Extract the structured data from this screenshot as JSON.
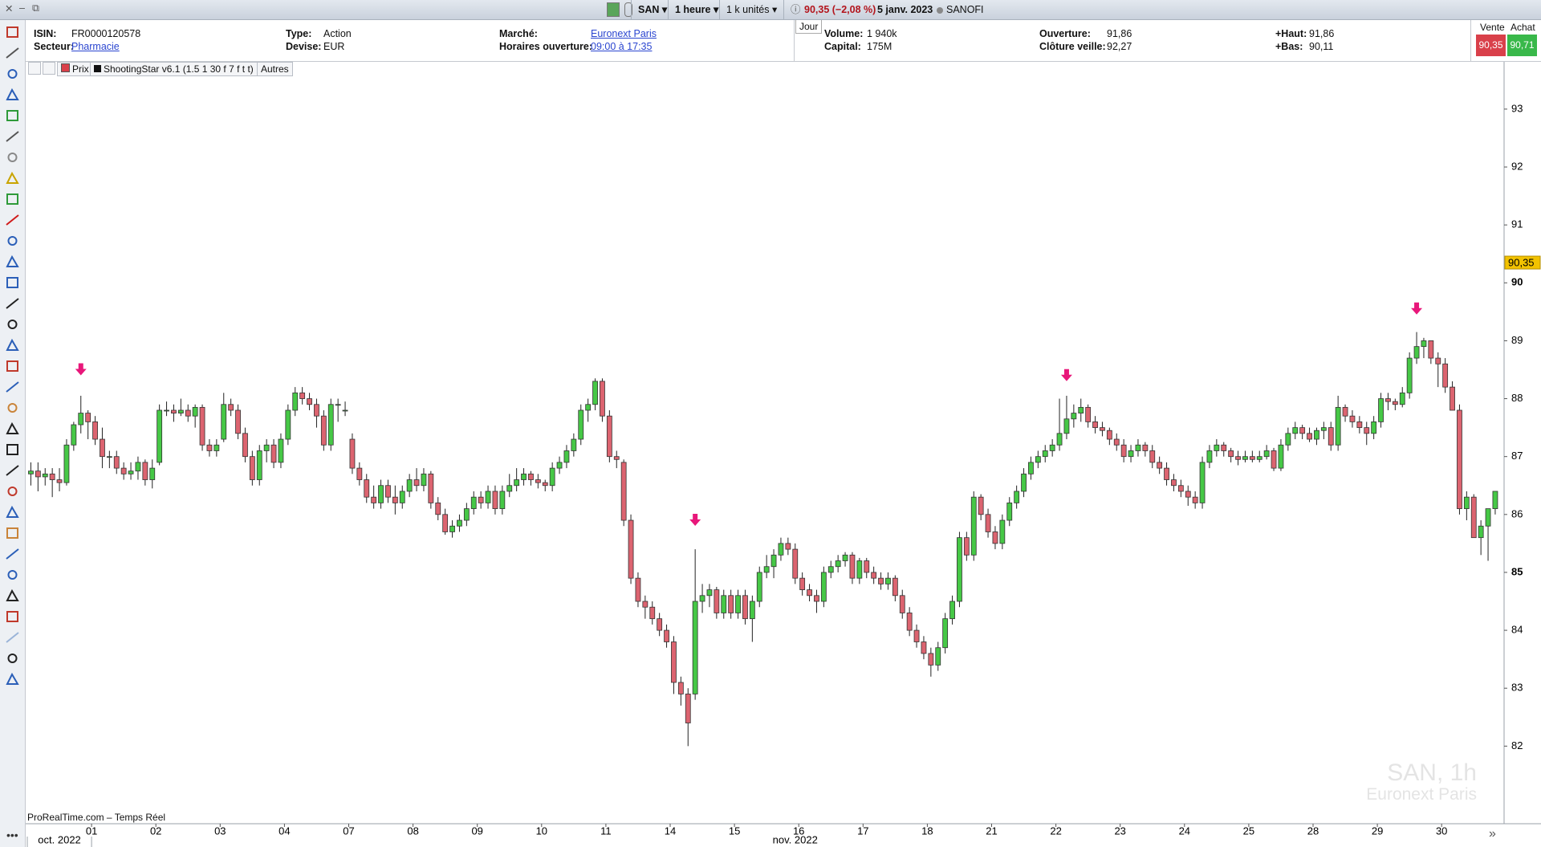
{
  "window": {
    "symbol": "SAN",
    "timeframe": "1 heure",
    "units": "1 k unités",
    "quote": "90,35 (−2,08 %)",
    "date": "5 janv. 2023",
    "name": "SANOFI"
  },
  "info": {
    "isin_label": "ISIN:",
    "isin": "FR0000120578",
    "sector_label": "Secteur:",
    "sector": "Pharmacie",
    "type_label": "Type:",
    "type": "Action",
    "currency_label": "Devise:",
    "currency": "EUR",
    "market_label": "Marché:",
    "market": "Euronext Paris",
    "hours_label": "Horaires ouverture:",
    "hours": "09:00 à 17:35",
    "tab": "Jour",
    "volume_label": "Volume:",
    "volume": "1 940k",
    "capital_label": "Capital:",
    "capital": "175M",
    "open_label": "Ouverture:",
    "open": "91,86",
    "prev_label": "Clôture veille:",
    "prev": "92,27",
    "high_label": "+Haut:",
    "high": "91,86",
    "low_label": "+Bas:",
    "low": "90,11"
  },
  "trade": {
    "sell_label": "Vente",
    "sell": "90,35",
    "buy_label": "Achat",
    "buy": "90,71"
  },
  "indicators": [
    "Prix",
    "ShootingStar v6.1 (1.5 1 30 f 7 f t t)",
    "Autres"
  ],
  "footer": {
    "source": "ProRealTime.com – Temps Réel",
    "watermark": "SAN, 1h",
    "watermark_sub": "Euronext Paris"
  },
  "chart_data": {
    "type": "candlestick",
    "up_color": "#46c846",
    "down_color": "#dc6470",
    "signal_color": "#e8177a",
    "ylim": [
      80.66,
      93.56
    ],
    "yticks": [
      82,
      83,
      84,
      85,
      86,
      87,
      88,
      89,
      90,
      91,
      92,
      93
    ],
    "last_price": {
      "value": 90.35,
      "label": "90,35"
    },
    "x_groups": [
      {
        "label": "oct. 2022",
        "start": 0
      },
      {
        "label": "nov. 2022",
        "start": 9
      }
    ],
    "categories": [
      null,
      null,
      null,
      null,
      null,
      null,
      null,
      null,
      null,
      "01",
      null,
      null,
      null,
      null,
      null,
      null,
      null,
      null,
      "02",
      null,
      null,
      null,
      null,
      null,
      null,
      null,
      null,
      "03",
      null,
      null,
      null,
      null,
      null,
      null,
      null,
      null,
      "04",
      null,
      null,
      null,
      null,
      null,
      null,
      null,
      null,
      "07",
      null,
      null,
      null,
      null,
      null,
      null,
      null,
      null,
      "08",
      null,
      null,
      null,
      null,
      null,
      null,
      null,
      null,
      "09",
      null,
      null,
      null,
      null,
      null,
      null,
      null,
      null,
      "10",
      null,
      null,
      null,
      null,
      null,
      null,
      null,
      null,
      "11",
      null,
      null,
      null,
      null,
      null,
      null,
      null,
      null,
      "14",
      null,
      null,
      null,
      null,
      null,
      null,
      null,
      null,
      "15",
      null,
      null,
      null,
      null,
      null,
      null,
      null,
      null,
      "16",
      null,
      null,
      null,
      null,
      null,
      null,
      null,
      null,
      "17",
      null,
      null,
      null,
      null,
      null,
      null,
      null,
      null,
      "18",
      null,
      null,
      null,
      null,
      null,
      null,
      null,
      null,
      "21",
      null,
      null,
      null,
      null,
      null,
      null,
      null,
      null,
      "22",
      null,
      null,
      null,
      null,
      null,
      null,
      null,
      null,
      "23",
      null,
      null,
      null,
      null,
      null,
      null,
      null,
      null,
      "24",
      null,
      null,
      null,
      null,
      null,
      null,
      null,
      null,
      "25",
      null,
      null,
      null,
      null,
      null,
      null,
      null,
      null,
      "28",
      null,
      null,
      null,
      null,
      null,
      null,
      null,
      null,
      "29",
      null,
      null,
      null,
      null,
      null,
      null,
      null,
      null,
      "30",
      null,
      null,
      null,
      null,
      null,
      null,
      null
    ],
    "candles": [
      [
        86.7,
        86.9,
        86.5,
        86.75
      ],
      [
        86.75,
        86.9,
        86.4,
        86.65
      ],
      [
        86.65,
        86.8,
        86.5,
        86.7
      ],
      [
        86.7,
        86.8,
        86.3,
        86.6
      ],
      [
        86.6,
        86.8,
        86.4,
        86.55
      ],
      [
        86.55,
        87.3,
        86.5,
        87.2
      ],
      [
        87.2,
        87.6,
        87.1,
        87.55
      ],
      [
        87.55,
        88.05,
        87.4,
        87.75
      ],
      [
        87.75,
        87.8,
        87.3,
        87.6
      ],
      [
        87.6,
        87.7,
        87.2,
        87.3
      ],
      [
        87.3,
        87.5,
        86.8,
        87.0
      ],
      [
        87.0,
        87.1,
        86.8,
        87.0
      ],
      [
        87.0,
        87.1,
        86.7,
        86.8
      ],
      [
        86.8,
        86.9,
        86.6,
        86.7
      ],
      [
        86.7,
        86.9,
        86.6,
        86.75
      ],
      [
        86.75,
        87.0,
        86.6,
        86.9
      ],
      [
        86.9,
        86.95,
        86.5,
        86.6
      ],
      [
        86.6,
        86.95,
        86.45,
        86.8
      ],
      [
        86.9,
        87.9,
        86.85,
        87.8
      ],
      [
        87.8,
        87.95,
        87.7,
        87.8
      ],
      [
        87.8,
        87.9,
        87.6,
        87.75
      ],
      [
        87.75,
        88.0,
        87.7,
        87.8
      ],
      [
        87.8,
        87.9,
        87.6,
        87.7
      ],
      [
        87.7,
        87.9,
        87.5,
        87.85
      ],
      [
        87.85,
        87.9,
        87.1,
        87.2
      ],
      [
        87.2,
        87.3,
        87.0,
        87.1
      ],
      [
        87.1,
        87.3,
        87.0,
        87.2
      ],
      [
        87.3,
        88.1,
        87.25,
        87.9
      ],
      [
        87.9,
        88.0,
        87.7,
        87.8
      ],
      [
        87.8,
        87.9,
        87.3,
        87.4
      ],
      [
        87.4,
        87.5,
        86.9,
        87.0
      ],
      [
        87.0,
        87.1,
        86.5,
        86.6
      ],
      [
        86.6,
        87.2,
        86.5,
        87.1
      ],
      [
        87.1,
        87.3,
        86.9,
        87.2
      ],
      [
        87.2,
        87.3,
        86.8,
        86.9
      ],
      [
        86.9,
        87.4,
        86.8,
        87.3
      ],
      [
        87.3,
        87.9,
        87.2,
        87.8
      ],
      [
        87.8,
        88.2,
        87.7,
        88.1
      ],
      [
        88.1,
        88.2,
        87.9,
        88.0
      ],
      [
        88.0,
        88.1,
        87.8,
        87.9
      ],
      [
        87.9,
        88.0,
        87.5,
        87.7
      ],
      [
        87.7,
        87.8,
        87.1,
        87.2
      ],
      [
        87.2,
        88.0,
        87.1,
        87.9
      ],
      [
        87.9,
        88.0,
        87.6,
        87.9
      ],
      [
        87.8,
        87.95,
        87.7,
        87.8
      ],
      [
        87.3,
        87.4,
        86.7,
        86.8
      ],
      [
        86.8,
        86.9,
        86.5,
        86.6
      ],
      [
        86.6,
        86.7,
        86.2,
        86.3
      ],
      [
        86.3,
        86.5,
        86.1,
        86.2
      ],
      [
        86.2,
        86.6,
        86.1,
        86.5
      ],
      [
        86.5,
        86.6,
        86.2,
        86.3
      ],
      [
        86.3,
        86.5,
        86.0,
        86.2
      ],
      [
        86.2,
        86.5,
        86.1,
        86.4
      ],
      [
        86.4,
        86.7,
        86.3,
        86.6
      ],
      [
        86.6,
        86.8,
        86.4,
        86.5
      ],
      [
        86.5,
        86.8,
        86.4,
        86.7
      ],
      [
        86.7,
        86.75,
        86.1,
        86.2
      ],
      [
        86.2,
        86.3,
        85.9,
        86.0
      ],
      [
        86.0,
        86.1,
        85.65,
        85.7
      ],
      [
        85.7,
        85.9,
        85.6,
        85.8
      ],
      [
        85.8,
        86.0,
        85.7,
        85.9
      ],
      [
        85.9,
        86.2,
        85.8,
        86.1
      ],
      [
        86.1,
        86.4,
        86.0,
        86.3
      ],
      [
        86.3,
        86.4,
        86.1,
        86.2
      ],
      [
        86.2,
        86.5,
        86.1,
        86.4
      ],
      [
        86.4,
        86.5,
        86.0,
        86.1
      ],
      [
        86.1,
        86.5,
        86.0,
        86.4
      ],
      [
        86.4,
        86.7,
        86.3,
        86.5
      ],
      [
        86.5,
        86.8,
        86.4,
        86.6
      ],
      [
        86.6,
        86.8,
        86.5,
        86.7
      ],
      [
        86.7,
        86.75,
        86.5,
        86.6
      ],
      [
        86.6,
        86.7,
        86.45,
        86.55
      ],
      [
        86.55,
        86.6,
        86.4,
        86.5
      ],
      [
        86.5,
        86.9,
        86.4,
        86.8
      ],
      [
        86.8,
        87.0,
        86.7,
        86.9
      ],
      [
        86.9,
        87.2,
        86.8,
        87.1
      ],
      [
        87.1,
        87.4,
        87.0,
        87.3
      ],
      [
        87.3,
        87.9,
        87.2,
        87.8
      ],
      [
        87.8,
        88.0,
        87.6,
        87.9
      ],
      [
        87.9,
        88.35,
        87.8,
        88.3
      ],
      [
        88.3,
        88.35,
        87.6,
        87.7
      ],
      [
        87.7,
        87.8,
        86.9,
        87.0
      ],
      [
        87.0,
        87.1,
        86.8,
        86.95
      ],
      [
        86.9,
        86.95,
        85.8,
        85.9
      ],
      [
        85.9,
        86.0,
        84.8,
        84.9
      ],
      [
        84.9,
        85.0,
        84.4,
        84.5
      ],
      [
        84.5,
        84.6,
        84.2,
        84.4
      ],
      [
        84.4,
        84.5,
        84.1,
        84.2
      ],
      [
        84.2,
        84.3,
        83.9,
        84.0
      ],
      [
        84.0,
        84.1,
        83.7,
        83.8
      ],
      [
        83.8,
        83.9,
        82.9,
        83.1
      ],
      [
        83.1,
        83.2,
        82.7,
        82.9
      ],
      [
        82.9,
        83.0,
        82.0,
        82.4
      ],
      [
        82.9,
        85.4,
        82.8,
        84.5
      ],
      [
        84.5,
        84.8,
        84.3,
        84.6
      ],
      [
        84.6,
        84.8,
        84.4,
        84.7
      ],
      [
        84.7,
        84.75,
        84.2,
        84.3
      ],
      [
        84.3,
        84.7,
        84.2,
        84.6
      ],
      [
        84.6,
        84.7,
        84.2,
        84.3
      ],
      [
        84.3,
        84.7,
        84.2,
        84.6
      ],
      [
        84.6,
        84.7,
        84.1,
        84.2
      ],
      [
        84.2,
        84.6,
        83.8,
        84.5
      ],
      [
        84.5,
        85.1,
        84.4,
        85.0
      ],
      [
        85.0,
        85.3,
        84.9,
        85.1
      ],
      [
        85.1,
        85.4,
        84.9,
        85.3
      ],
      [
        85.3,
        85.6,
        85.2,
        85.5
      ],
      [
        85.5,
        85.6,
        85.3,
        85.4
      ],
      [
        85.4,
        85.5,
        84.8,
        84.9
      ],
      [
        84.9,
        85.0,
        84.6,
        84.7
      ],
      [
        84.7,
        84.8,
        84.5,
        84.6
      ],
      [
        84.6,
        84.7,
        84.3,
        84.5
      ],
      [
        84.5,
        85.1,
        84.4,
        85.0
      ],
      [
        85.0,
        85.2,
        84.9,
        85.1
      ],
      [
        85.1,
        85.3,
        85.0,
        85.2
      ],
      [
        85.2,
        85.35,
        85.1,
        85.3
      ],
      [
        85.3,
        85.35,
        84.8,
        84.9
      ],
      [
        84.9,
        85.25,
        84.8,
        85.2
      ],
      [
        85.2,
        85.25,
        84.9,
        85.0
      ],
      [
        85.0,
        85.1,
        84.8,
        84.9
      ],
      [
        84.9,
        85.0,
        84.7,
        84.8
      ],
      [
        84.8,
        85.0,
        84.7,
        84.9
      ],
      [
        84.9,
        84.95,
        84.5,
        84.6
      ],
      [
        84.6,
        84.7,
        84.2,
        84.3
      ],
      [
        84.3,
        84.4,
        83.9,
        84.0
      ],
      [
        84.0,
        84.1,
        83.7,
        83.8
      ],
      [
        83.8,
        83.9,
        83.5,
        83.6
      ],
      [
        83.6,
        83.7,
        83.2,
        83.4
      ],
      [
        83.4,
        83.8,
        83.3,
        83.7
      ],
      [
        83.7,
        84.3,
        83.6,
        84.2
      ],
      [
        84.2,
        84.6,
        84.1,
        84.5
      ],
      [
        84.5,
        85.7,
        84.4,
        85.6
      ],
      [
        85.6,
        85.7,
        85.2,
        85.3
      ],
      [
        85.3,
        86.4,
        85.2,
        86.3
      ],
      [
        86.3,
        86.35,
        85.9,
        86.0
      ],
      [
        86.0,
        86.1,
        85.6,
        85.7
      ],
      [
        85.7,
        85.8,
        85.4,
        85.5
      ],
      [
        85.5,
        86.0,
        85.4,
        85.9
      ],
      [
        85.9,
        86.3,
        85.8,
        86.2
      ],
      [
        86.2,
        86.5,
        86.1,
        86.4
      ],
      [
        86.4,
        86.8,
        86.3,
        86.7
      ],
      [
        86.7,
        87.0,
        86.6,
        86.9
      ],
      [
        86.9,
        87.1,
        86.8,
        87.0
      ],
      [
        87.0,
        87.2,
        86.9,
        87.1
      ],
      [
        87.1,
        87.3,
        87.0,
        87.2
      ],
      [
        87.2,
        88.0,
        87.1,
        87.4
      ],
      [
        87.4,
        88.05,
        87.3,
        87.65
      ],
      [
        87.65,
        87.9,
        87.5,
        87.75
      ],
      [
        87.75,
        88.0,
        87.6,
        87.85
      ],
      [
        87.85,
        87.9,
        87.5,
        87.6
      ],
      [
        87.6,
        87.7,
        87.4,
        87.5
      ],
      [
        87.5,
        87.6,
        87.35,
        87.45
      ],
      [
        87.45,
        87.5,
        87.2,
        87.3
      ],
      [
        87.3,
        87.4,
        87.1,
        87.2
      ],
      [
        87.2,
        87.3,
        86.9,
        87.0
      ],
      [
        87.0,
        87.2,
        86.9,
        87.1
      ],
      [
        87.1,
        87.3,
        87.0,
        87.2
      ],
      [
        87.2,
        87.25,
        87.0,
        87.1
      ],
      [
        87.1,
        87.2,
        86.8,
        86.9
      ],
      [
        86.9,
        87.0,
        86.7,
        86.8
      ],
      [
        86.8,
        86.9,
        86.5,
        86.6
      ],
      [
        86.6,
        86.7,
        86.4,
        86.5
      ],
      [
        86.5,
        86.6,
        86.3,
        86.4
      ],
      [
        86.4,
        86.5,
        86.15,
        86.3
      ],
      [
        86.3,
        86.4,
        86.1,
        86.2
      ],
      [
        86.2,
        87.0,
        86.1,
        86.9
      ],
      [
        86.9,
        87.2,
        86.8,
        87.1
      ],
      [
        87.1,
        87.3,
        87.0,
        87.2
      ],
      [
        87.2,
        87.25,
        87.0,
        87.1
      ],
      [
        87.1,
        87.15,
        86.9,
        87.0
      ],
      [
        87.0,
        87.1,
        86.85,
        86.95
      ],
      [
        86.95,
        87.1,
        86.9,
        87.0
      ],
      [
        87.0,
        87.1,
        86.9,
        86.95
      ],
      [
        86.95,
        87.1,
        86.9,
        87.0
      ],
      [
        87.0,
        87.2,
        86.95,
        87.1
      ],
      [
        87.1,
        87.15,
        86.75,
        86.8
      ],
      [
        86.8,
        87.3,
        86.75,
        87.2
      ],
      [
        87.2,
        87.5,
        87.1,
        87.4
      ],
      [
        87.4,
        87.6,
        87.3,
        87.5
      ],
      [
        87.5,
        87.55,
        87.3,
        87.4
      ],
      [
        87.4,
        87.5,
        87.25,
        87.3
      ],
      [
        87.3,
        87.5,
        87.2,
        87.45
      ],
      [
        87.45,
        87.6,
        87.3,
        87.5
      ],
      [
        87.5,
        87.6,
        87.1,
        87.2
      ],
      [
        87.2,
        88.05,
        87.1,
        87.85
      ],
      [
        87.85,
        87.9,
        87.6,
        87.7
      ],
      [
        87.7,
        87.8,
        87.5,
        87.6
      ],
      [
        87.6,
        87.7,
        87.4,
        87.5
      ],
      [
        87.5,
        87.6,
        87.2,
        87.4
      ],
      [
        87.4,
        87.7,
        87.3,
        87.6
      ],
      [
        87.6,
        88.1,
        87.5,
        88.0
      ],
      [
        88.0,
        88.1,
        87.8,
        87.95
      ],
      [
        87.95,
        88.0,
        87.8,
        87.9
      ],
      [
        87.9,
        88.2,
        87.85,
        88.1
      ],
      [
        88.1,
        88.8,
        88.0,
        88.7
      ],
      [
        88.7,
        89.15,
        88.6,
        88.9
      ],
      [
        88.9,
        89.05,
        88.7,
        89.0
      ],
      [
        89.0,
        89.0,
        88.6,
        88.7
      ],
      [
        88.7,
        88.8,
        88.2,
        88.6
      ],
      [
        88.6,
        88.7,
        88.1,
        88.2
      ],
      [
        88.2,
        88.3,
        87.8,
        87.8
      ],
      [
        87.8,
        87.9,
        86.0,
        86.1
      ],
      [
        86.1,
        86.4,
        85.9,
        86.3
      ],
      [
        86.3,
        86.35,
        85.6,
        85.6
      ],
      [
        85.6,
        85.9,
        85.3,
        85.8
      ],
      [
        85.8,
        86.1,
        85.2,
        86.1
      ],
      [
        86.1,
        86.4,
        86.0,
        86.4
      ]
    ],
    "signals": {
      "candles": [
        7,
        93,
        145,
        194
      ],
      "values": [
        88.5,
        85.9,
        88.4,
        89.55
      ]
    }
  }
}
